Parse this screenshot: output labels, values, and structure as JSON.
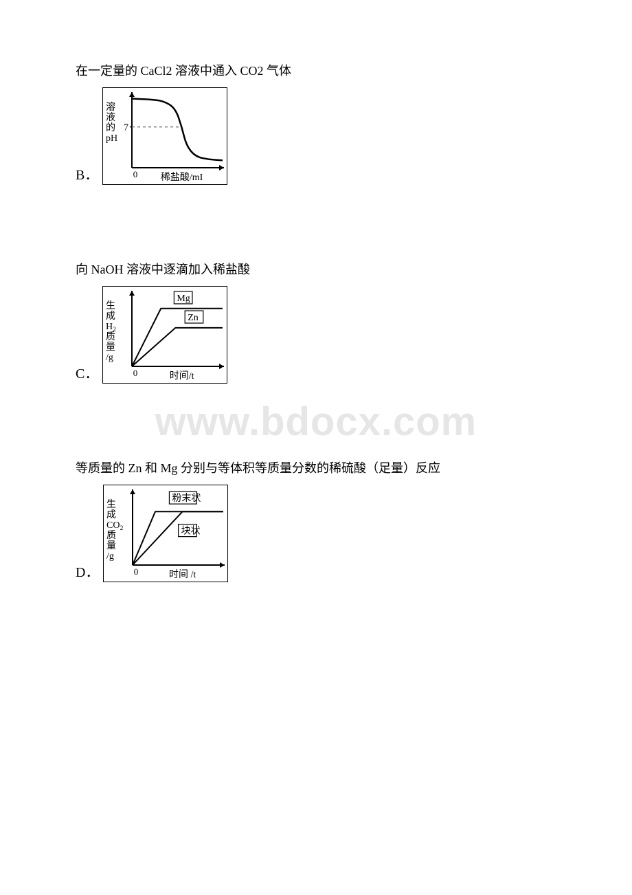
{
  "watermark": "www.bdocx.com",
  "sectionA": {
    "caption": "在一定量的 CaCl2 溶液中通入 CO2 气体",
    "option_label": "B．",
    "chart": {
      "type": "line",
      "background_color": "#ffffff",
      "axis_color": "#000000",
      "axis_width": 2,
      "ylabel_chars": [
        "溶",
        "液",
        "的",
        "pH"
      ],
      "ylabel_fontsize": 14,
      "y_tick_value": "7",
      "y_tick_pos": 0.55,
      "xlabel": "稀盐酸/mI",
      "xlabel_fontsize": 14,
      "origin_label": "0",
      "curve": {
        "color": "#000000",
        "width": 2.5,
        "points": [
          [
            0.0,
            0.93
          ],
          [
            0.2,
            0.92
          ],
          [
            0.35,
            0.9
          ],
          [
            0.48,
            0.8
          ],
          [
            0.55,
            0.55
          ],
          [
            0.6,
            0.3
          ],
          [
            0.7,
            0.15
          ],
          [
            0.85,
            0.11
          ],
          [
            1.0,
            0.1
          ]
        ]
      },
      "dashed": {
        "color": "#7a7a7a",
        "from": [
          0.0,
          0.55
        ],
        "to": [
          0.55,
          0.55
        ],
        "dash": "4,4"
      }
    }
  },
  "sectionB": {
    "caption": "向 NaOH 溶液中逐滴加入稀盐酸",
    "option_label": "C．",
    "chart": {
      "type": "line",
      "background_color": "#ffffff",
      "axis_color": "#000000",
      "axis_width": 2,
      "ylabel_chars": [
        "生",
        "成",
        "H₂",
        "质",
        "量",
        "/g"
      ],
      "ylabel_fontsize": 14,
      "xlabel": "时间/t",
      "xlabel_fontsize": 14,
      "origin_label": "0",
      "series": [
        {
          "label": "Mg",
          "label_pos": [
            0.48,
            0.88
          ],
          "color": "#000000",
          "width": 2,
          "points": [
            [
              0.0,
              0.0
            ],
            [
              0.32,
              0.78
            ],
            [
              1.0,
              0.78
            ]
          ]
        },
        {
          "label": "Zn",
          "label_pos": [
            0.6,
            0.62
          ],
          "color": "#000000",
          "width": 2,
          "points": [
            [
              0.0,
              0.0
            ],
            [
              0.48,
              0.52
            ],
            [
              1.0,
              0.52
            ]
          ]
        }
      ],
      "label_boxes": true
    }
  },
  "sectionC": {
    "caption": "等质量的 Zn 和 Mg 分别与等体积等质量分数的稀硫酸（足量）反应",
    "option_label": "D．",
    "chart": {
      "type": "line",
      "background_color": "#ffffff",
      "axis_color": "#000000",
      "axis_width": 2,
      "ylabel_chars": [
        "生",
        "成",
        "CO₂",
        "质",
        "量",
        "/g"
      ],
      "ylabel_fontsize": 14,
      "xlabel": "时间 /t",
      "xlabel_fontsize": 14,
      "origin_label": "0",
      "series": [
        {
          "label": "粉末状",
          "label_pos": [
            0.42,
            0.86
          ],
          "color": "#000000",
          "width": 2,
          "points": [
            [
              0.0,
              0.0
            ],
            [
              0.25,
              0.72
            ],
            [
              1.0,
              0.72
            ]
          ]
        },
        {
          "label": "块状",
          "label_pos": [
            0.52,
            0.42
          ],
          "color": "#000000",
          "width": 2,
          "points": [
            [
              0.0,
              0.0
            ],
            [
              0.55,
              0.72
            ],
            [
              1.0,
              0.72
            ]
          ]
        }
      ],
      "label_boxes": true
    }
  }
}
